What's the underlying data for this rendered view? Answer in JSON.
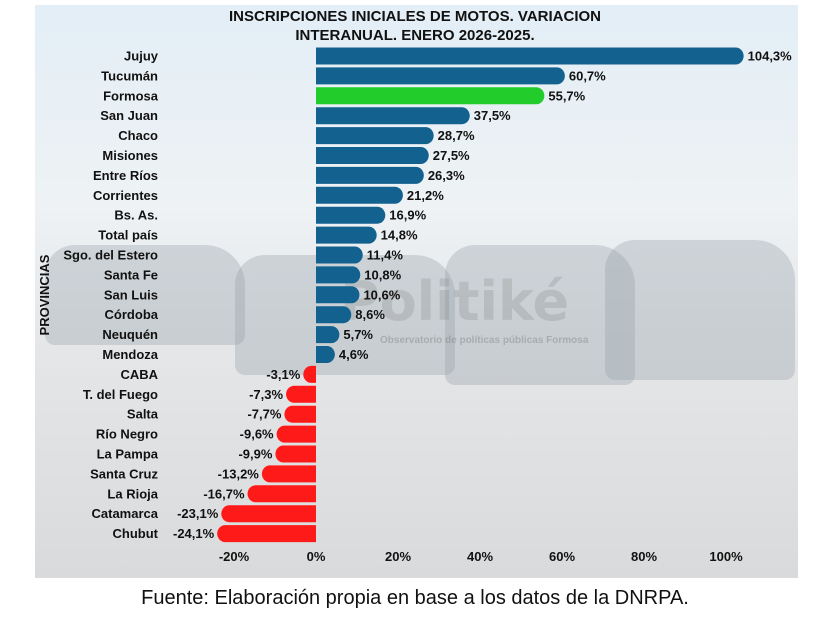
{
  "chart_data": {
    "type": "bar",
    "orientation": "horizontal",
    "title_lines": [
      "INSCRIPCIONES INICIALES DE MOTOS. VARIACION",
      "INTERANUAL. ENERO 2026-2025."
    ],
    "ylabel": "PROVINCIAS",
    "xlabel": "",
    "xlim": [
      -25,
      110
    ],
    "xticks": [
      -20,
      0,
      20,
      40,
      60,
      80,
      100
    ],
    "xtick_labels": [
      "-20%",
      "0%",
      "20%",
      "40%",
      "60%",
      "80%",
      "100%"
    ],
    "categories": [
      "Jujuy",
      "Tucumán",
      "Formosa",
      "San Juan",
      "Chaco",
      "Misiones",
      "Entre Ríos",
      "Corrientes",
      "Bs. As.",
      "Total país",
      "Sgo. del Estero",
      "Santa Fe",
      "San Luis",
      "Córdoba",
      "Neuquén",
      "Mendoza",
      "CABA",
      "T. del Fuego",
      "Salta",
      "Río Negro",
      "La Pampa",
      "Santa Cruz",
      "La Rioja",
      "Catamarca",
      "Chubut"
    ],
    "values": [
      104.3,
      60.7,
      55.7,
      37.5,
      28.7,
      27.5,
      26.3,
      21.2,
      16.9,
      14.8,
      11.4,
      10.8,
      10.6,
      8.6,
      5.7,
      4.6,
      -3.1,
      -7.3,
      -7.7,
      -9.6,
      -9.9,
      -13.2,
      -16.7,
      -23.1,
      -24.1
    ],
    "data_labels": [
      "104,3%",
      "60,7%",
      "55,7%",
      "37,5%",
      "28,7%",
      "27,5%",
      "26,3%",
      "21,2%",
      "16,9%",
      "14,8%",
      "11,4%",
      "10,8%",
      "10,6%",
      "8,6%",
      "5,7%",
      "4,6%",
      "-3,1%",
      "-7,3%",
      "-7,7%",
      "-9,6%",
      "-9,9%",
      "-13,2%",
      "-16,7%",
      "-23,1%",
      "-24,1%"
    ],
    "highlight": "Formosa",
    "colors": {
      "positive": "#12618f",
      "highlight": "#22cc2a",
      "negative": "#ff1a1a"
    }
  },
  "watermark": {
    "name": "Politiké",
    "subtitle": "Observatorio de políticas públicas Formosa"
  },
  "caption": "Fuente: Elaboración propia en base a los datos de la DNRPA."
}
